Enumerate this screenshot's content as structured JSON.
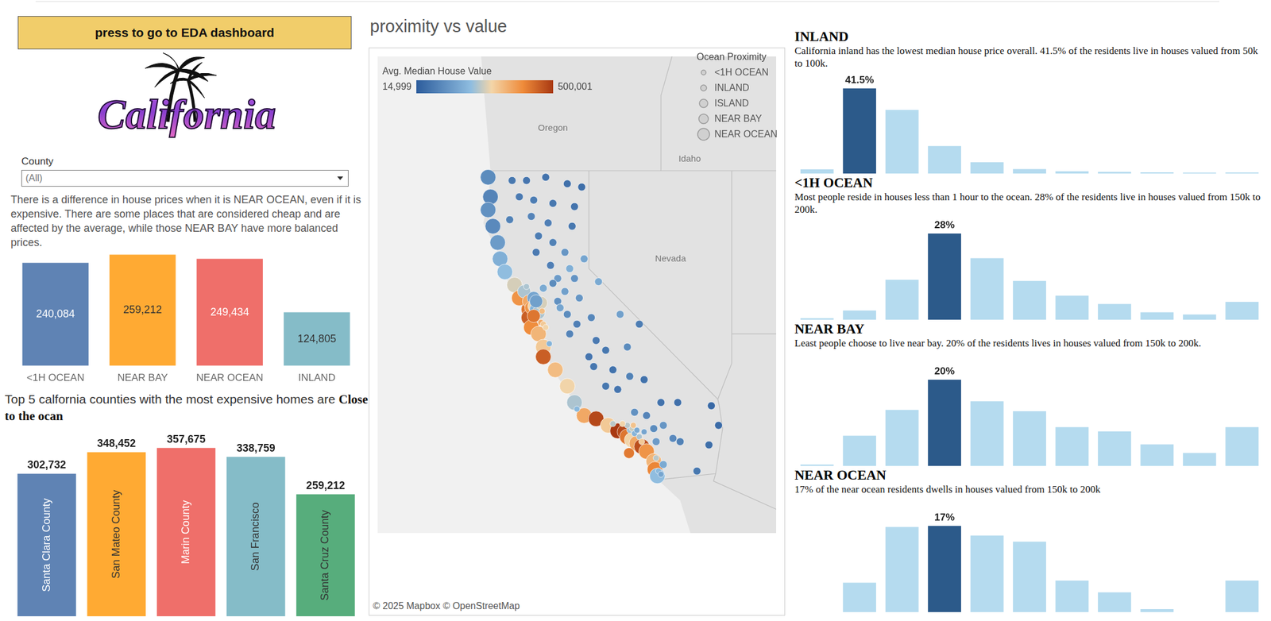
{
  "header": {
    "button": "press to go to EDA dashboard",
    "logo": "California"
  },
  "filter": {
    "label": "County",
    "value": "(All)"
  },
  "note": "There is a difference in house prices when it is NEAR OCEAN, even if it is expensive. There are some places that are considered cheap and are affected by the average, while those NEAR BAY have more balanced prices.",
  "chart_data": [
    {
      "type": "bar",
      "categories": [
        "<1H OCEAN",
        "NEAR BAY",
        "NEAR OCEAN",
        "INLAND"
      ],
      "values": [
        240084,
        259212,
        249434,
        124805
      ],
      "value_labels": [
        "240,084",
        "259,212",
        "249,434",
        "124,805"
      ],
      "colors": [
        "#5f83b4",
        "#ffaa33",
        "#ef6f6a",
        "#85bcc8"
      ],
      "ylim": [
        0,
        260000
      ],
      "tick_labels": "x",
      "data_labels": true,
      "grid": false
    },
    {
      "type": "bar",
      "title": "Top 5 calfornia counties with the most expensive homes are",
      "subtitle": "Close to the ocan",
      "categories": [
        "Santa Clara County",
        "San Mateo County",
        "Marin County",
        "San Francisco",
        "Santa Cruz County"
      ],
      "values": [
        302732,
        348452,
        357675,
        338759,
        259212
      ],
      "value_labels": [
        "302,732",
        "348,452",
        "357,675",
        "338,759",
        "259,212"
      ],
      "colors": [
        "#5f83b4",
        "#ffaa33",
        "#ef6f6a",
        "#85bcc8",
        "#57ad7c"
      ],
      "ylim": [
        0,
        370000
      ],
      "tick_labels": "x",
      "data_labels": true,
      "grid": false
    },
    {
      "type": "map",
      "title": "proximity vs value",
      "xlim": [
        -128.8,
        -112.2
      ],
      "ylim": [
        30.9,
        45.5
      ],
      "tick_labels": false,
      "grid": false,
      "legend": "top-right",
      "size_legend_title": "Ocean Proximity",
      "colorbar": {
        "title": "Avg. Median House Value",
        "range": [
          14999,
          500001
        ],
        "ticks": [
          {
            "value": 14999,
            "label": "14,999"
          },
          {
            "value": 500001,
            "label": "500,001"
          }
        ]
      },
      "map_labels": [
        "Oregon",
        "Idaho",
        "Nevada"
      ],
      "attribution": "© 2025 Mapbox © OpenStreetMap",
      "series": [
        {
          "name": "<1H OCEAN",
          "points": [
            [
              -122.0,
              37.35,
              350000
            ],
            [
              -121.9,
              37.3,
              300000
            ],
            [
              -121.8,
              37.2,
              280000
            ],
            [
              -121.65,
              36.7,
              190000
            ],
            [
              -122.6,
              38.45,
              230000
            ],
            [
              -121.95,
              37.7,
              320000
            ],
            [
              -118.3,
              34.05,
              220000
            ],
            [
              -118.2,
              34.1,
              250000
            ],
            [
              -118.1,
              33.95,
              190000
            ],
            [
              -118.0,
              34.05,
              170000
            ],
            [
              -117.9,
              33.85,
              230000
            ],
            [
              -117.8,
              33.7,
              300000
            ],
            [
              -117.7,
              34.0,
              160000
            ],
            [
              -118.4,
              34.2,
              240000
            ],
            [
              -118.6,
              34.25,
              280000
            ],
            [
              -118.15,
              34.2,
              310000
            ],
            [
              -119.0,
              34.25,
              240000
            ],
            [
              -117.1,
              32.8,
              200000
            ],
            [
              -117.0,
              32.7,
              160000
            ],
            [
              -117.2,
              33.2,
              240000
            ],
            [
              -120.5,
              34.7,
              200000
            ]
          ]
        },
        {
          "name": "INLAND",
          "points": [
            [
              -123.2,
              41.7,
              70000
            ],
            [
              -122.6,
              41.7,
              65000
            ],
            [
              -121.8,
              41.8,
              60000
            ],
            [
              -120.9,
              41.6,
              55000
            ],
            [
              -120.3,
              41.5,
              50000
            ],
            [
              -122.9,
              41.2,
              75000
            ],
            [
              -122.3,
              41.1,
              80000
            ],
            [
              -121.5,
              41.0,
              70000
            ],
            [
              -120.6,
              40.9,
              60000
            ],
            [
              -123.3,
              40.5,
              90000
            ],
            [
              -122.4,
              40.6,
              95000
            ],
            [
              -121.7,
              40.4,
              85000
            ],
            [
              -120.7,
              40.3,
              70000
            ],
            [
              -122.1,
              40.0,
              80000
            ],
            [
              -121.5,
              39.8,
              90000
            ],
            [
              -121.0,
              39.5,
              130000
            ],
            [
              -122.2,
              39.5,
              75000
            ],
            [
              -121.6,
              39.1,
              85000
            ],
            [
              -120.2,
              39.3,
              160000
            ],
            [
              -120.8,
              39.0,
              180000
            ],
            [
              -121.3,
              38.7,
              140000
            ],
            [
              -121.5,
              38.55,
              110000
            ],
            [
              -121.9,
              38.4,
              170000
            ],
            [
              -121.0,
              38.3,
              150000
            ],
            [
              -120.4,
              38.1,
              130000
            ],
            [
              -121.3,
              38.0,
              120000
            ],
            [
              -120.9,
              37.6,
              110000
            ],
            [
              -121.2,
              37.8,
              160000
            ],
            [
              -119.9,
              37.5,
              100000
            ],
            [
              -120.5,
              37.3,
              85000
            ],
            [
              -119.7,
              36.8,
              75000
            ],
            [
              -119.3,
              36.5,
              70000
            ],
            [
              -120.0,
              36.3,
              65000
            ],
            [
              -119.0,
              35.9,
              60000
            ],
            [
              -119.3,
              35.4,
              70000
            ],
            [
              -118.8,
              35.3,
              65000
            ],
            [
              -118.3,
              35.7,
              90000
            ],
            [
              -118.4,
              36.6,
              110000
            ],
            [
              -117.9,
              37.3,
              80000
            ],
            [
              -118.7,
              37.6,
              150000
            ],
            [
              -119.6,
              38.6,
              170000
            ],
            [
              -118.1,
              34.6,
              120000
            ],
            [
              -117.6,
              34.5,
              95000
            ],
            [
              -117.3,
              34.1,
              110000
            ],
            [
              -116.9,
              34.2,
              130000
            ],
            [
              -116.5,
              33.8,
              105000
            ],
            [
              -116.2,
              33.7,
              90000
            ],
            [
              -117.2,
              33.7,
              140000
            ],
            [
              -116.9,
              33.0,
              170000
            ],
            [
              -115.5,
              32.8,
              70000
            ],
            [
              -115.0,
              33.6,
              50000
            ],
            [
              -114.6,
              34.2,
              45000
            ],
            [
              -116.3,
              34.9,
              55000
            ],
            [
              -117.0,
              34.9,
              60000
            ],
            [
              -117.7,
              35.6,
              58000
            ],
            [
              -114.9,
              34.8,
              40000
            ],
            [
              -120.6,
              38.7,
              125000
            ],
            [
              -119.8,
              36.0,
              68000
            ],
            [
              -120.8,
              37.0,
              95000
            ]
          ]
        },
        {
          "name": "ISLAND",
          "points": [
            [
              -118.33,
              33.35,
              414700
            ]
          ]
        },
        {
          "name": "NEAR BAY",
          "points": [
            [
              -122.7,
              38.3,
              230000
            ],
            [
              -122.5,
              38.0,
              350000
            ],
            [
              -122.3,
              38.1,
              160000
            ],
            [
              -122.4,
              37.8,
              380000
            ],
            [
              -122.27,
              37.85,
              280000
            ],
            [
              -122.2,
              37.75,
              190000
            ],
            [
              -122.1,
              37.65,
              230000
            ],
            [
              -122.0,
              37.95,
              260000
            ],
            [
              -122.2,
              38.0,
              150000
            ],
            [
              -122.3,
              37.55,
              420000
            ]
          ]
        },
        {
          "name": "NEAR OCEAN",
          "points": [
            [
              -124.2,
              41.8,
              110000
            ],
            [
              -124.1,
              41.2,
              95000
            ],
            [
              -124.2,
              40.8,
              120000
            ],
            [
              -124.0,
              40.3,
              105000
            ],
            [
              -123.8,
              39.8,
              140000
            ],
            [
              -123.7,
              39.3,
              180000
            ],
            [
              -123.5,
              38.9,
              210000
            ],
            [
              -123.1,
              38.5,
              260000
            ],
            [
              -122.9,
              38.1,
              380000
            ],
            [
              -122.5,
              37.75,
              420000
            ],
            [
              -122.5,
              37.5,
              450000
            ],
            [
              -122.4,
              37.2,
              390000
            ],
            [
              -122.1,
              37.0,
              330000
            ],
            [
              -121.9,
              36.6,
              300000
            ],
            [
              -121.9,
              36.3,
              450000
            ],
            [
              -121.4,
              35.9,
              320000
            ],
            [
              -120.9,
              35.4,
              280000
            ],
            [
              -120.6,
              34.9,
              230000
            ],
            [
              -120.2,
              34.5,
              350000
            ],
            [
              -119.7,
              34.4,
              480000
            ],
            [
              -119.2,
              34.2,
              300000
            ],
            [
              -118.8,
              34.03,
              500001
            ],
            [
              -118.5,
              34.0,
              480000
            ],
            [
              -118.4,
              33.85,
              420000
            ],
            [
              -118.2,
              33.75,
              280000
            ],
            [
              -118.0,
              33.65,
              350000
            ],
            [
              -117.8,
              33.55,
              470000
            ],
            [
              -117.6,
              33.4,
              380000
            ],
            [
              -117.3,
              33.1,
              330000
            ],
            [
              -117.25,
              32.85,
              400000
            ],
            [
              -117.15,
              32.65,
              210000
            ]
          ]
        }
      ]
    },
    {
      "type": "bar",
      "title": "INLAND",
      "subtitle": "California inland has the lowest median house price overall. 41.5% of the residents live in houses valued from 50k to 100k.",
      "categories": [
        null,
        null,
        null,
        null,
        null,
        null,
        null,
        null,
        null,
        null,
        null
      ],
      "values": [
        2,
        41.5,
        31,
        13.4,
        5.5,
        2.2,
        1.1,
        0.8,
        0.6,
        0.4,
        0.5
      ],
      "value_labels": [
        null,
        "41.5%",
        null,
        null,
        null,
        null,
        null,
        null,
        null,
        null,
        null
      ],
      "colors": [
        "#b5dbef",
        "#2c5a8a",
        "#b5dbef",
        "#b5dbef",
        "#b5dbef",
        "#b5dbef",
        "#b5dbef",
        "#b5dbef",
        "#b5dbef",
        "#b5dbef",
        "#b5dbef"
      ],
      "ylim": [
        0,
        42
      ],
      "tick_labels": false,
      "data_labels": true,
      "grid": false
    },
    {
      "type": "bar",
      "title": "<1H OCEAN",
      "subtitle": "Most people reside in houses less than 1 hour to the ocean. 28% of the residents live in houses valued from 150k to 200k.",
      "categories": [
        null,
        null,
        null,
        null,
        null,
        null,
        null,
        null,
        null,
        null,
        null
      ],
      "values": [
        0.5,
        3,
        13,
        28,
        20,
        12.6,
        7.8,
        5.1,
        2.4,
        1.7,
        5.8
      ],
      "value_labels": [
        null,
        null,
        null,
        "28%",
        null,
        null,
        null,
        null,
        null,
        null,
        null
      ],
      "colors": [
        "#b5dbef",
        "#b5dbef",
        "#b5dbef",
        "#2c5a8a",
        "#b5dbef",
        "#b5dbef",
        "#b5dbef",
        "#b5dbef",
        "#b5dbef",
        "#b5dbef",
        "#b5dbef"
      ],
      "ylim": [
        0,
        28
      ],
      "tick_labels": false,
      "data_labels": true,
      "grid": false
    },
    {
      "type": "bar",
      "title": "NEAR BAY",
      "subtitle": "Least people choose to live near bay. 20% of the residents lives in houses valued from 150k to 200k.",
      "categories": [
        null,
        null,
        null,
        null,
        null,
        null,
        null,
        null,
        null,
        null,
        null
      ],
      "values": [
        0.3,
        7,
        13,
        20,
        15,
        12.7,
        9,
        8,
        5,
        3,
        9
      ],
      "value_labels": [
        null,
        null,
        null,
        "20%",
        null,
        null,
        null,
        null,
        null,
        null,
        null
      ],
      "colors": [
        "#b5dbef",
        "#b5dbef",
        "#b5dbef",
        "#2c5a8a",
        "#b5dbef",
        "#b5dbef",
        "#b5dbef",
        "#b5dbef",
        "#b5dbef",
        "#b5dbef",
        "#b5dbef"
      ],
      "ylim": [
        0,
        20
      ],
      "tick_labels": false,
      "data_labels": true,
      "grid": false
    },
    {
      "type": "bar",
      "title": "NEAR OCEAN",
      "subtitle": "17% of the near ocean residents dwells in houses valued from 150k to 200k",
      "categories": [
        null,
        null,
        null,
        null,
        null,
        null,
        null,
        null,
        null,
        null,
        null
      ],
      "values": [
        0,
        5.8,
        16.8,
        17,
        15.1,
        13.9,
        6.2,
        3.9,
        0.6,
        0,
        6.2
      ],
      "value_labels": [
        null,
        null,
        null,
        "17%",
        null,
        null,
        null,
        null,
        null,
        null,
        null
      ],
      "colors": [
        "#b5dbef",
        "#b5dbef",
        "#b5dbef",
        "#2c5a8a",
        "#b5dbef",
        "#b5dbef",
        "#b5dbef",
        "#b5dbef",
        "#b5dbef",
        "#b5dbef",
        "#b5dbef"
      ],
      "ylim": [
        0,
        17
      ],
      "tick_labels": false,
      "data_labels": true,
      "grid": false
    }
  ]
}
